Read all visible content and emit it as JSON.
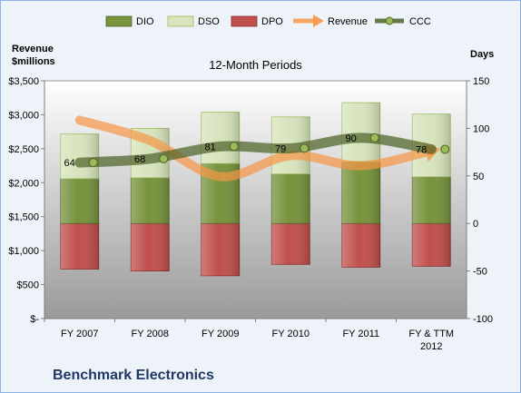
{
  "company_name": "Benchmark Electronics",
  "chart_data": {
    "type": "bar",
    "title": "12-Month Periods",
    "categories": [
      "FY 2007",
      "FY 2008",
      "FY 2009",
      "FY 2010",
      "FY 2011",
      "FY & TTM 2012"
    ],
    "left_axis": {
      "label_lines": [
        "Revenue",
        "$millions"
      ],
      "range": [
        0,
        3500
      ],
      "ticks": [
        0,
        500,
        1000,
        1500,
        2000,
        2500,
        3000,
        3500
      ],
      "tick_labels": [
        "$-",
        "$500",
        "$1,000",
        "$1,500",
        "$2,000",
        "$2,500",
        "$3,000",
        "$3,500"
      ]
    },
    "right_axis": {
      "label": "Days",
      "range": [
        -100,
        150
      ],
      "ticks": [
        -100,
        -50,
        0,
        50,
        100,
        150
      ],
      "tick_labels": [
        "-100",
        "-50",
        "0",
        "50",
        "100",
        "150"
      ]
    },
    "series": [
      {
        "name": "DIO",
        "type": "stacked-bar",
        "axis": "right",
        "color": "#77933c",
        "values": [
          47,
          48,
          63,
          52,
          65,
          49
        ]
      },
      {
        "name": "DSO",
        "type": "stacked-bar",
        "axis": "right",
        "color": "#d7e4bd",
        "values": [
          47,
          52,
          54,
          60,
          62,
          66
        ]
      },
      {
        "name": "DPO",
        "type": "bar",
        "axis": "right",
        "color": "#c0504d",
        "values": [
          -48,
          -50,
          -55,
          -43,
          -46,
          -45
        ]
      },
      {
        "name": "Revenue",
        "type": "line",
        "axis": "left",
        "color": "#f79646",
        "values": [
          2920,
          2620,
          2090,
          2400,
          2250,
          2470
        ]
      },
      {
        "name": "CCC",
        "type": "line",
        "axis": "right",
        "color": "#4f6228",
        "values": [
          64,
          68,
          81,
          79,
          90,
          78
        ],
        "labels": [
          "64",
          "68",
          "81",
          "79",
          "90",
          "78"
        ]
      }
    ],
    "legend_position": "top",
    "grid": false
  }
}
